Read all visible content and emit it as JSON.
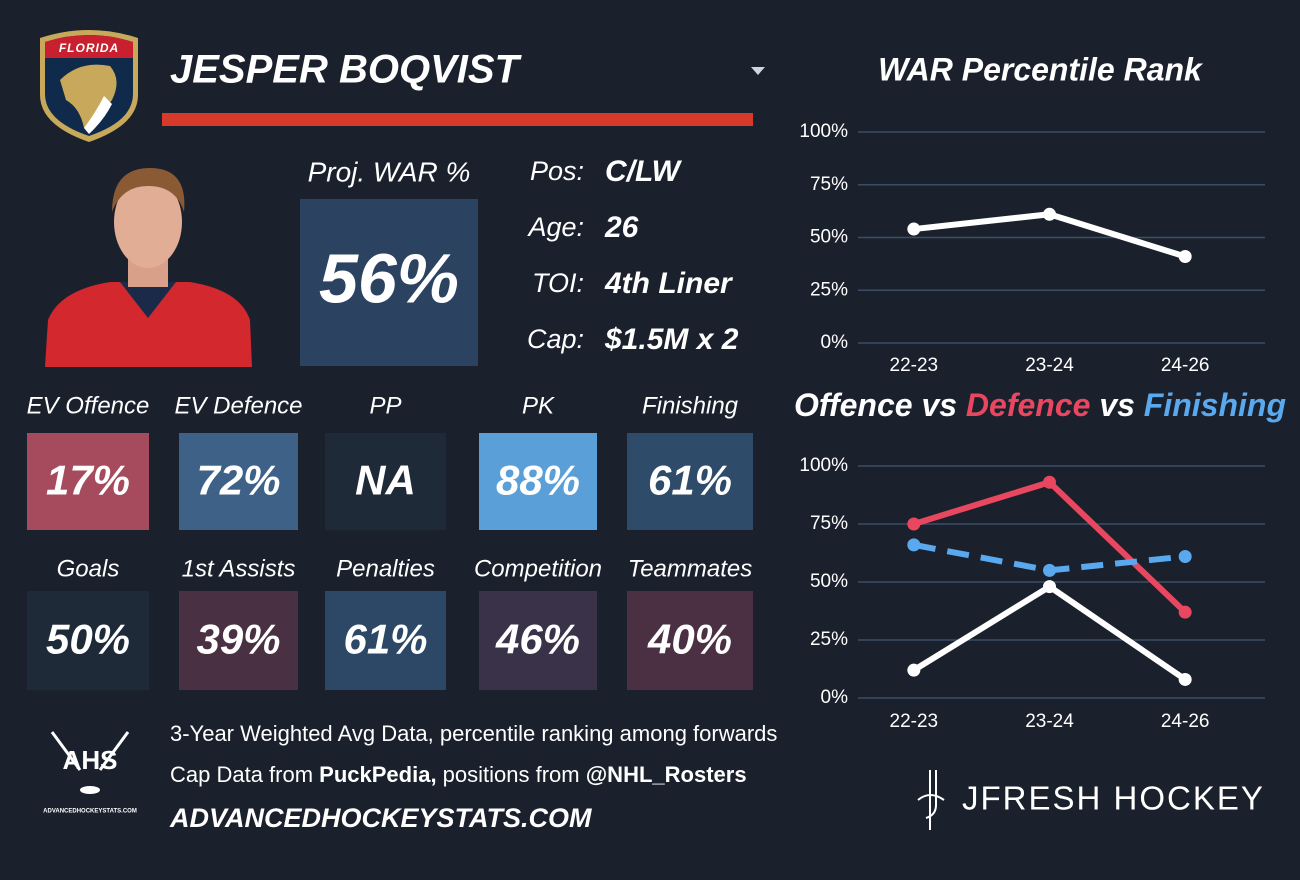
{
  "header": {
    "team": "FLORIDA",
    "player": "JESPER BOQVIST"
  },
  "summary": {
    "war_label": "Proj. WAR %",
    "war_value": "56%",
    "info": [
      {
        "label": "Pos:",
        "value": "C/LW"
      },
      {
        "label": "Age:",
        "value": "26"
      },
      {
        "label": "TOI:",
        "value": "4th Liner"
      },
      {
        "label": "Cap:",
        "value": "$1.5M x 2"
      }
    ]
  },
  "tiles": [
    {
      "label": "EV Offence",
      "value": "17%",
      "color": "#a64a5d"
    },
    {
      "label": "EV Defence",
      "value": "72%",
      "color": "#3e6187"
    },
    {
      "label": "PP",
      "value": "NA",
      "color": "#1f2a39"
    },
    {
      "label": "PK",
      "value": "88%",
      "color": "#5b9fd8"
    },
    {
      "label": "Finishing",
      "value": "61%",
      "color": "#2f4b6a"
    },
    {
      "label": "Goals",
      "value": "50%",
      "color": "#1f2a39"
    },
    {
      "label": "1st Assists",
      "value": "39%",
      "color": "#4a3043"
    },
    {
      "label": "Penalties",
      "value": "61%",
      "color": "#2d4866"
    },
    {
      "label": "Competition",
      "value": "46%",
      "color": "#3a3248"
    },
    {
      "label": "Teammates",
      "value": "40%",
      "color": "#4b3043"
    }
  ],
  "footer": {
    "logo": "AHS",
    "logo_site": "ADVANCEDHOCKEYSTATS.COM",
    "line1": "3-Year Weighted Avg Data, percentile ranking among forwards",
    "line2": [
      {
        "text": "Cap Data from ",
        "bold": false
      },
      {
        "text": "PuckPedia,",
        "bold": true
      },
      {
        "text": " positions from ",
        "bold": false
      },
      {
        "text": "@NHL_Rosters",
        "bold": true
      }
    ],
    "site": "ADVANCEDHOCKEYSTATS.COM",
    "brand": "JFRESH HOCKEY"
  },
  "chart_data": [
    {
      "type": "line",
      "title": "WAR Percentile Rank",
      "categories": [
        "22-23",
        "23-24",
        "24-26"
      ],
      "series": [
        {
          "color": "#ffffff",
          "values": [
            54,
            61,
            41
          ]
        }
      ],
      "ylim": [
        0,
        100
      ],
      "yticks": [
        {
          "value": 0,
          "label": "0%"
        },
        {
          "value": 25,
          "label": "25%"
        },
        {
          "value": 50,
          "label": "50%"
        },
        {
          "value": 75,
          "label": "75%"
        },
        {
          "value": 100,
          "label": "100%"
        }
      ],
      "grid": true
    },
    {
      "type": "line",
      "title_separator": "vs",
      "categories": [
        "22-23",
        "23-24",
        "24-26"
      ],
      "series": [
        {
          "name": "Offence",
          "color": "#ffffff",
          "values": [
            12,
            48,
            8
          ]
        },
        {
          "name": "Defence",
          "color": "#e8475f",
          "values": [
            75,
            93,
            37
          ]
        },
        {
          "name": "Finishing",
          "color": "#5aa9ee",
          "dashed": true,
          "values": [
            66,
            55,
            61
          ]
        }
      ],
      "ylim": [
        0,
        100
      ],
      "yticks": [
        {
          "value": 0,
          "label": "0%"
        },
        {
          "value": 25,
          "label": "25%"
        },
        {
          "value": 50,
          "label": "50%"
        },
        {
          "value": 75,
          "label": "75%"
        },
        {
          "value": 100,
          "label": "100%"
        }
      ],
      "grid": true
    }
  ]
}
